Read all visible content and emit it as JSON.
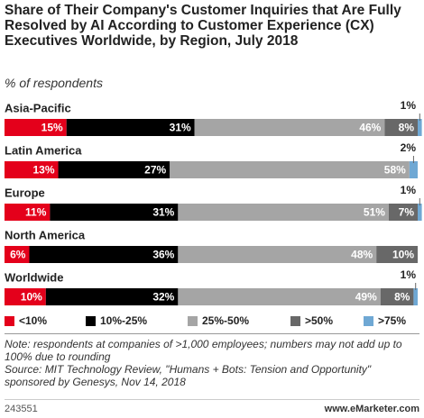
{
  "chart_data": {
    "type": "stacked-bar",
    "title": "Share of Their Company's Customer Inquiries that Are Fully Resolved by AI According to Customer Experience (CX) Executives Worldwide, by Region, July 2018",
    "subtitle": "% of respondents",
    "categories": [
      "Asia-Pacific",
      "Latin America",
      "Europe",
      "North America",
      "Worldwide"
    ],
    "xlim": [
      0,
      100
    ],
    "series": [
      {
        "name": "<10%",
        "color": "#e4001b",
        "values": [
          15,
          13,
          11,
          6,
          10
        ],
        "value_labels": [
          "15%",
          "13%",
          "11%",
          "6%",
          "10%"
        ]
      },
      {
        "name": "10%-25%",
        "color": "#000000",
        "values": [
          31,
          27,
          31,
          36,
          32
        ],
        "value_labels": [
          "31%",
          "27%",
          "31%",
          "36%",
          "32%"
        ]
      },
      {
        "name": "25%-50%",
        "color": "#a5a5a5",
        "values": [
          46,
          58,
          51,
          48,
          49
        ],
        "value_labels": [
          "46%",
          "58%",
          "51%",
          "48%",
          "49%"
        ]
      },
      {
        "name": ">50%",
        "color": "#686868",
        "values": [
          8,
          0,
          7,
          10,
          8
        ],
        "value_labels": [
          "8%",
          null,
          "7%",
          "10%",
          "8%"
        ]
      },
      {
        "name": ">75%",
        "color": "#6fa8d4",
        "values": [
          1,
          2,
          1,
          0,
          1
        ],
        "value_labels": [
          "1%",
          "2%",
          "1%",
          null,
          "1%"
        ]
      }
    ],
    "note": "Note: respondents at companies of >1,000 employees; numbers may not add up to 100% due to rounding",
    "source": "Source: MIT Technology Review, \"Humans + Bots: Tension and Opportunity\" sponsored by Genesys, Nov 14, 2018",
    "chart_id": "243551",
    "brand": "www.eMarketer.com"
  }
}
